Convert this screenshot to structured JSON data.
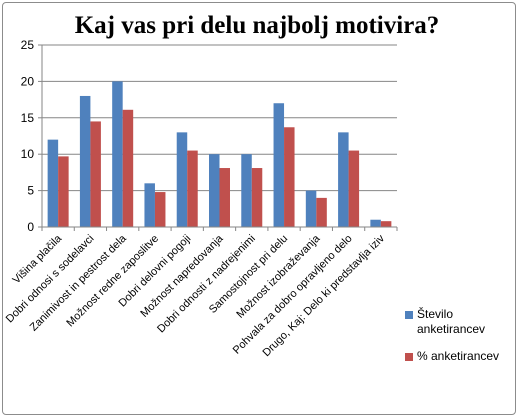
{
  "chart_data": {
    "type": "bar",
    "title": "Kaj vas pri delu najbolj motivira?",
    "xlabel": "",
    "ylabel": "",
    "ylim": [
      0,
      25
    ],
    "yticks": [
      0,
      5,
      10,
      15,
      20,
      25
    ],
    "grid": true,
    "legend_position": "right",
    "categories": [
      "Višina plačila",
      "Dobri odnosi s sodelavci",
      "Zanimivost in pestrost dela",
      "Možnost redne zaposlitve",
      "Dobri delovni pogoji",
      "Možnost napredovanja",
      "Dobri odnosti z nadrejenimi",
      "Samostojnost pri delu",
      "Možnost izobraževanja",
      "Pohvala za dobro opravljeno delo",
      "Drugo, Kaj: Delo ki predstavlja iziv"
    ],
    "series": [
      {
        "name": "Število anketirancev",
        "color": "#4f81bd",
        "values": [
          12,
          18,
          20,
          6,
          13,
          10,
          10,
          17,
          5,
          13,
          1
        ]
      },
      {
        "name": "% anketirancev",
        "color": "#c0504d",
        "values": [
          9.7,
          14.5,
          16.1,
          4.8,
          10.5,
          8.1,
          8.1,
          13.7,
          4.0,
          10.5,
          0.8
        ]
      }
    ]
  }
}
